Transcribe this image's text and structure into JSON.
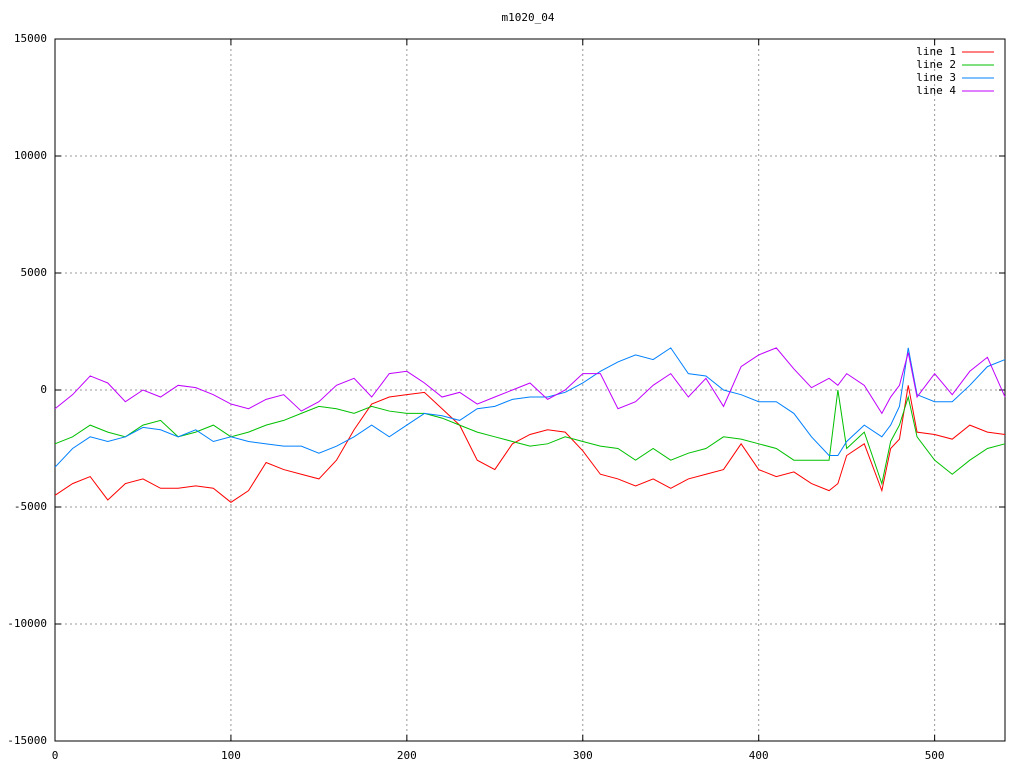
{
  "chart_data": {
    "type": "line",
    "title": "m1020_04",
    "x": [
      0,
      10,
      20,
      30,
      40,
      50,
      60,
      70,
      80,
      90,
      100,
      110,
      120,
      130,
      140,
      150,
      160,
      170,
      180,
      190,
      200,
      210,
      220,
      230,
      240,
      250,
      260,
      270,
      280,
      290,
      300,
      310,
      320,
      330,
      340,
      350,
      360,
      370,
      380,
      390,
      400,
      410,
      420,
      430,
      440,
      445,
      450,
      460,
      470,
      475,
      480,
      485,
      490,
      500,
      510,
      520,
      530,
      540
    ],
    "series": [
      {
        "name": "line 1",
        "color": "#ff0000",
        "values": [
          -4500,
          -4000,
          -3700,
          -4700,
          -4000,
          -3800,
          -4200,
          -4200,
          -4100,
          -4200,
          -4800,
          -4300,
          -3100,
          -3400,
          -3600,
          -3800,
          -3000,
          -1700,
          -600,
          -300,
          -200,
          -100,
          -800,
          -1500,
          -3000,
          -3400,
          -2300,
          -1900,
          -1700,
          -1800,
          -2600,
          -3600,
          -3800,
          -4100,
          -3800,
          -4200,
          -3800,
          -3600,
          -3400,
          -2300,
          -3400,
          -3700,
          -3500,
          -4000,
          -4300,
          -4000,
          -2800,
          -2300,
          -4300,
          -2500,
          -2100,
          200,
          -1800,
          -1900,
          -2100,
          -1500,
          -1800,
          -1900
        ]
      },
      {
        "name": "line 2",
        "color": "#00c000",
        "values": [
          -2300,
          -2000,
          -1500,
          -1800,
          -2000,
          -1500,
          -1300,
          -2000,
          -1800,
          -1500,
          -2000,
          -1800,
          -1500,
          -1300,
          -1000,
          -700,
          -800,
          -1000,
          -700,
          -900,
          -1000,
          -1000,
          -1200,
          -1500,
          -1800,
          -2000,
          -2200,
          -2400,
          -2300,
          -2000,
          -2200,
          -2400,
          -2500,
          -3000,
          -2500,
          -3000,
          -2700,
          -2500,
          -2000,
          -2100,
          -2300,
          -2500,
          -3000,
          -3000,
          -3000,
          0,
          -2500,
          -1800,
          -4000,
          -2200,
          -1500,
          -300,
          -2000,
          -3000,
          -3600,
          -3000,
          -2500,
          -2300
        ]
      },
      {
        "name": "line 3",
        "color": "#0080ff",
        "values": [
          -3300,
          -2500,
          -2000,
          -2200,
          -2000,
          -1600,
          -1700,
          -2000,
          -1700,
          -2200,
          -2000,
          -2200,
          -2300,
          -2400,
          -2400,
          -2700,
          -2400,
          -2000,
          -1500,
          -2000,
          -1500,
          -1000,
          -1100,
          -1300,
          -800,
          -700,
          -400,
          -300,
          -300,
          -100,
          300,
          800,
          1200,
          1500,
          1300,
          1800,
          700,
          600,
          0,
          -200,
          -500,
          -500,
          -1000,
          -2000,
          -2800,
          -2800,
          -2200,
          -1500,
          -2000,
          -1500,
          -700,
          1800,
          -200,
          -500,
          -500,
          200,
          1000,
          1300
        ]
      },
      {
        "name": "line 4",
        "color": "#c000ff",
        "values": [
          -800,
          -200,
          600,
          300,
          -500,
          0,
          -300,
          200,
          100,
          -200,
          -600,
          -800,
          -400,
          -200,
          -900,
          -500,
          200,
          500,
          -300,
          700,
          800,
          300,
          -300,
          -100,
          -600,
          -300,
          0,
          300,
          -400,
          0,
          700,
          700,
          -800,
          -500,
          200,
          700,
          -300,
          500,
          -700,
          1000,
          1500,
          1800,
          900,
          100,
          500,
          200,
          700,
          200,
          -1000,
          -300,
          200,
          1600,
          -300,
          700,
          -200,
          800,
          1400,
          -300
        ]
      }
    ],
    "xlim": [
      0,
      540
    ],
    "ylim": [
      -15000,
      15000
    ],
    "xticks": [
      0,
      100,
      200,
      300,
      400,
      500
    ],
    "yticks": [
      -15000,
      -10000,
      -5000,
      0,
      5000,
      10000,
      15000
    ],
    "grid": true,
    "legend": "top-right"
  }
}
